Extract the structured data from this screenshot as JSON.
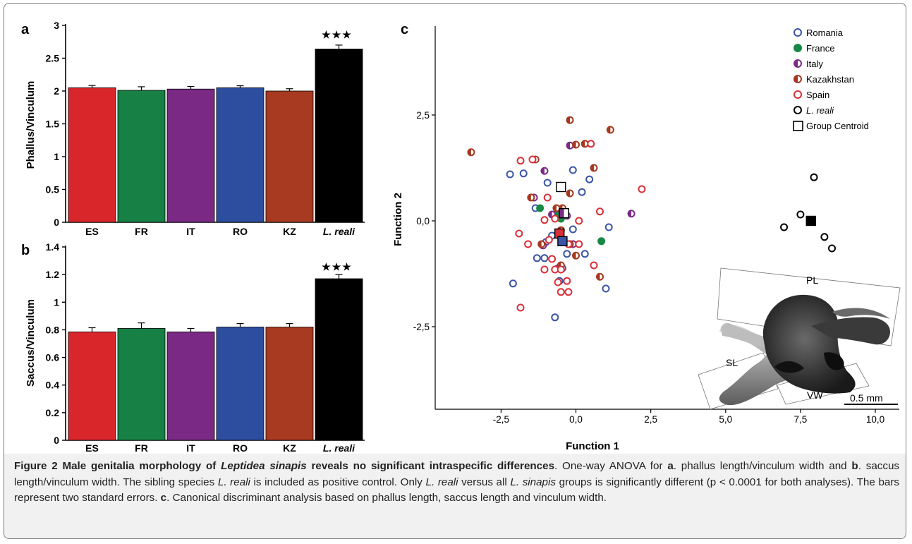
{
  "colors": {
    "ES": "#d8262b",
    "FR": "#178044",
    "IT": "#7a2a84",
    "RO": "#2d4e9e",
    "KZ": "#a83a22",
    "reali": "#000000",
    "Romania": "#3a55a6",
    "France": "#168a45",
    "Italy": "#7b2b86",
    "Kazakhstan": "#a5391f",
    "Spain": "#d9303a"
  },
  "panels": {
    "a": {
      "letter": "a",
      "significance": "★★★"
    },
    "b": {
      "letter": "b",
      "significance": "★★★"
    },
    "c": {
      "letter": "c"
    }
  },
  "inset": {
    "labels": [
      "PL",
      "SL",
      "VW"
    ],
    "scale_bar": "0.5 mm"
  },
  "chart_data": [
    {
      "panel": "a",
      "type": "bar",
      "categories": [
        "ES",
        "FR",
        "IT",
        "RO",
        "KZ",
        "L. reali"
      ],
      "values": [
        2.05,
        2.01,
        2.03,
        2.05,
        2.0,
        2.64
      ],
      "errors": [
        0.035,
        0.055,
        0.04,
        0.03,
        0.035,
        0.06
      ],
      "ylabel": "Phallus/Vinculum",
      "ylim": [
        0,
        3
      ],
      "yticks": [
        "0",
        "0.5",
        "1",
        "1.5",
        "2",
        "2.5",
        "3"
      ],
      "ytick_values": [
        0,
        0.5,
        1,
        1.5,
        2,
        2.5,
        3
      ]
    },
    {
      "panel": "b",
      "type": "bar",
      "categories": [
        "ES",
        "FR",
        "IT",
        "RO",
        "KZ",
        "L. reali"
      ],
      "values": [
        0.785,
        0.81,
        0.785,
        0.82,
        0.82,
        1.17
      ],
      "errors": [
        0.03,
        0.04,
        0.025,
        0.025,
        0.025,
        0.03
      ],
      "ylabel": "Saccus/Vinculum",
      "ylim": [
        0,
        1.4
      ],
      "yticks": [
        "0",
        "0.2",
        "0.4",
        "0.6",
        "0.8",
        "1",
        "1.2",
        "1.4"
      ],
      "ytick_values": [
        0,
        0.2,
        0.4,
        0.6,
        0.8,
        1.0,
        1.2,
        1.4
      ]
    },
    {
      "panel": "c",
      "type": "scatter",
      "xlabel": "Function 1",
      "ylabel": "Function 2",
      "xlim": [
        -4.7,
        10.8
      ],
      "ylim": [
        -4.45,
        4.6
      ],
      "xticks": [
        "-2,5",
        "0,0",
        "2,5",
        "5,0",
        "7,5",
        "10,0"
      ],
      "xtick_values": [
        -2.5,
        0,
        2.5,
        5,
        7.5,
        10
      ],
      "yticks": [
        "2,5",
        "0,0",
        "-2,5"
      ],
      "ytick_values": [
        2.5,
        0,
        -2.5
      ],
      "legend_position": "top-right",
      "series": [
        {
          "name": "Romania",
          "marker": "open-circle",
          "points": [
            [
              -2.2,
              1.1
            ],
            [
              -1.75,
              1.12
            ],
            [
              -1.35,
              0.3
            ],
            [
              -0.95,
              0.9
            ],
            [
              -0.1,
              1.2
            ],
            [
              0.45,
              0.98
            ],
            [
              0.2,
              0.68
            ],
            [
              1.1,
              -0.15
            ],
            [
              -1.0,
              -0.5
            ],
            [
              -1.3,
              -0.88
            ],
            [
              -1.05,
              -0.88
            ],
            [
              -0.3,
              -0.78
            ],
            [
              0.3,
              -0.78
            ],
            [
              -0.45,
              -1.12
            ],
            [
              -0.55,
              -1.42
            ],
            [
              -2.1,
              -1.48
            ],
            [
              1.0,
              -1.6
            ],
            [
              -0.7,
              -2.28
            ],
            [
              -0.8,
              -0.35
            ],
            [
              -0.1,
              -0.2
            ]
          ]
        },
        {
          "name": "France",
          "marker": "filled-circle",
          "points": [
            [
              -1.2,
              0.3
            ],
            [
              -0.6,
              0.18
            ],
            [
              -0.5,
              0.05
            ],
            [
              0.85,
              -0.48
            ]
          ]
        },
        {
          "name": "Italy",
          "marker": "half-circle",
          "points": [
            [
              -1.05,
              1.18
            ],
            [
              -0.2,
              1.78
            ],
            [
              -1.4,
              0.55
            ],
            [
              -0.3,
              0.12
            ],
            [
              -0.8,
              0.15
            ],
            [
              1.85,
              0.17
            ],
            [
              -1.1,
              -0.58
            ],
            [
              -0.6,
              -1.12
            ],
            [
              -0.1,
              -0.55
            ]
          ]
        },
        {
          "name": "Kazakhstan",
          "marker": "half-circle",
          "points": [
            [
              -3.5,
              1.62
            ],
            [
              -0.2,
              2.38
            ],
            [
              1.15,
              2.15
            ],
            [
              0.0,
              1.8
            ],
            [
              0.3,
              1.82
            ],
            [
              0.6,
              1.25
            ],
            [
              -1.35,
              1.45
            ],
            [
              -1.5,
              0.55
            ],
            [
              -0.2,
              0.65
            ],
            [
              -0.45,
              0.3
            ],
            [
              -0.65,
              0.3
            ],
            [
              -0.5,
              -0.22
            ],
            [
              -0.2,
              -0.55
            ],
            [
              -1.15,
              -0.55
            ],
            [
              0.0,
              -0.82
            ],
            [
              -0.5,
              -1.05
            ],
            [
              0.8,
              -1.32
            ]
          ]
        },
        {
          "name": "Spain",
          "marker": "open-circle",
          "points": [
            [
              -1.85,
              1.42
            ],
            [
              -1.45,
              1.45
            ],
            [
              -0.95,
              0.55
            ],
            [
              0.5,
              1.82
            ],
            [
              2.2,
              0.75
            ],
            [
              0.8,
              0.22
            ],
            [
              -1.05,
              0.02
            ],
            [
              -0.7,
              0.05
            ],
            [
              0.1,
              0.0
            ],
            [
              -1.9,
              -0.3
            ],
            [
              -1.6,
              -0.55
            ],
            [
              -0.9,
              -0.45
            ],
            [
              -0.25,
              -0.55
            ],
            [
              0.1,
              -0.55
            ],
            [
              -0.8,
              -0.9
            ],
            [
              -0.7,
              -1.15
            ],
            [
              -1.05,
              -1.15
            ],
            [
              -0.5,
              -1.15
            ],
            [
              -0.3,
              -1.42
            ],
            [
              -0.6,
              -1.45
            ],
            [
              -0.5,
              -1.68
            ],
            [
              -0.25,
              -1.68
            ],
            [
              0.6,
              -1.05
            ],
            [
              -1.85,
              -2.05
            ]
          ]
        },
        {
          "name": "L. reali",
          "marker": "open-circle",
          "points": [
            [
              7.95,
              1.03
            ],
            [
              7.5,
              0.15
            ],
            [
              6.95,
              -0.15
            ],
            [
              8.3,
              -0.38
            ],
            [
              8.55,
              -0.65
            ]
          ]
        },
        {
          "name": "Group Centroid",
          "marker": "open-square",
          "points": [
            [
              -0.5,
              0.8
            ],
            [
              -0.4,
              0.18
            ],
            [
              -0.55,
              -0.3
            ],
            [
              -0.45,
              -0.48
            ],
            [
              7.85,
              0.0
            ]
          ]
        }
      ]
    }
  ],
  "caption": {
    "title_prefix": "Figure 2 Male genitalia morphology of ",
    "title_species": "Leptidea sinapis",
    "title_suffix": " reveals no significant intraspecific differences",
    "t1": ". One-way ANOVA for ",
    "a": "a",
    "t2": ". phallus length/vinculum width and ",
    "b": "b",
    "t3": ". saccus length/vinculum width. The sibling species ",
    "sp1": "L. reali",
    "t4": " is included as positive control. Only ",
    "sp2": "L. reali",
    "t5": " versus all ",
    "sp3": "L. sinapis",
    "t6": " groups is significantly different (p < 0.0001 for both analyses). The bars represent two standard errors. ",
    "c": "c",
    "t7": ". Canonical discriminant analysis based on phallus length, saccus length and vinculum width."
  }
}
